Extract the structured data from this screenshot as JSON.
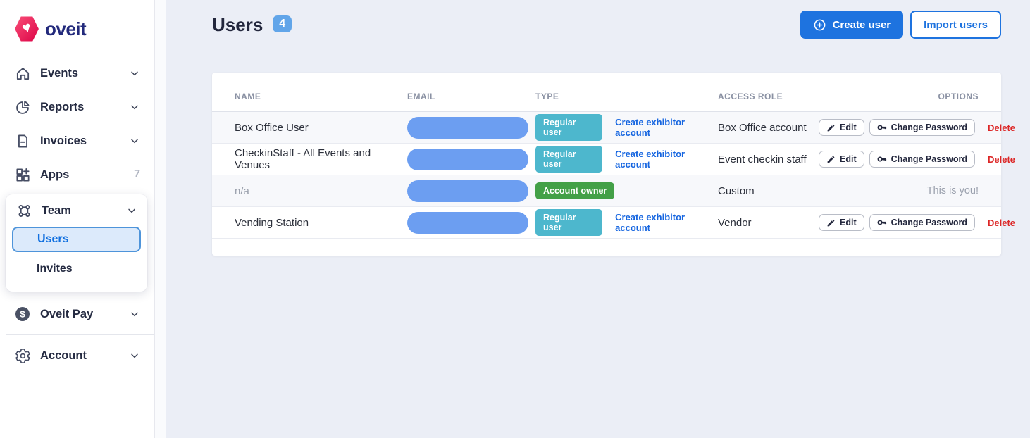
{
  "brand": {
    "name": "oveit"
  },
  "sidebar": {
    "items": [
      {
        "label": "Events",
        "icon": "home",
        "chevron": true
      },
      {
        "label": "Reports",
        "icon": "pie-chart",
        "chevron": true
      },
      {
        "label": "Invoices",
        "icon": "invoice",
        "chevron": true
      },
      {
        "label": "Apps",
        "icon": "apps",
        "count": "7"
      },
      {
        "label": "Team",
        "icon": "team",
        "chevron": true,
        "expanded": true,
        "children": [
          {
            "label": "Users",
            "active": true
          },
          {
            "label": "Invites",
            "active": false
          }
        ]
      },
      {
        "label": "Oveit Pay",
        "icon": "dollar",
        "chevron": true
      },
      {
        "label": "Account",
        "icon": "gear",
        "chevron": true,
        "divider_before": true
      }
    ]
  },
  "header": {
    "title": "Users",
    "count": "4",
    "create_button": "Create user",
    "import_button": "Import users"
  },
  "table": {
    "columns": [
      "NAME",
      "EMAIL",
      "TYPE",
      "ACCESS ROLE",
      "OPTIONS"
    ],
    "rows": [
      {
        "name": "Box Office User",
        "muted": false,
        "email_redacted": true,
        "type_badge": "Regular user",
        "badge_color": "teal",
        "type_link": "Create exhibitor account",
        "access_role": "Box Office account",
        "options": [
          "Edit",
          "Change Password",
          "Delete"
        ]
      },
      {
        "name": "CheckinStaff - All Events and Venues",
        "muted": false,
        "email_redacted": true,
        "type_badge": "Regular user",
        "badge_color": "teal",
        "type_link": "Create exhibitor account",
        "access_role": "Event checkin staff",
        "options": [
          "Edit",
          "Change Password",
          "Delete"
        ]
      },
      {
        "name": "n/a",
        "muted": true,
        "email_redacted": true,
        "type_badge": "Account owner",
        "badge_color": "green",
        "type_link": null,
        "access_role": "Custom",
        "note": "This is you!"
      },
      {
        "name": "Vending Station",
        "muted": false,
        "email_redacted": true,
        "type_badge": "Regular user",
        "badge_color": "teal",
        "type_link": "Create exhibitor account",
        "access_role": "Vendor",
        "options": [
          "Edit",
          "Change Password",
          "Delete"
        ]
      }
    ]
  },
  "colors": {
    "accent_blue": "#1e73df",
    "badge_blue": "#61a5e9",
    "badge_teal": "#4db7cd",
    "badge_green": "#43a047",
    "email_pill": "#6c9ef1",
    "delete_red": "#dc2626",
    "active_item_bg": "#dceafb",
    "active_item_border": "#4e94da",
    "brand_navy": "#232a7c",
    "brand_pink": "#e00d4d"
  }
}
